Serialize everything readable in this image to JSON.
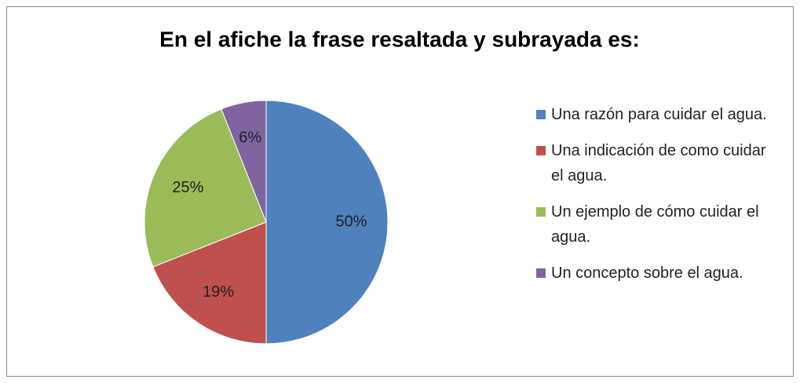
{
  "chart_data": {
    "type": "pie",
    "title": "En el afiche la frase resaltada y subrayada es:",
    "categories": [
      "Una razón para cuidar el agua.",
      "Una indicación de como cuidar el agua.",
      "Un ejemplo de cómo cuidar el agua.",
      "Un concepto sobre el agua."
    ],
    "values": [
      50,
      19,
      25,
      6
    ],
    "value_labels": [
      "50%",
      "19%",
      "25%",
      "6%"
    ],
    "colors": [
      "#4f81bd",
      "#c0504d",
      "#9bbb59",
      "#8064a2"
    ],
    "legend": "right"
  }
}
